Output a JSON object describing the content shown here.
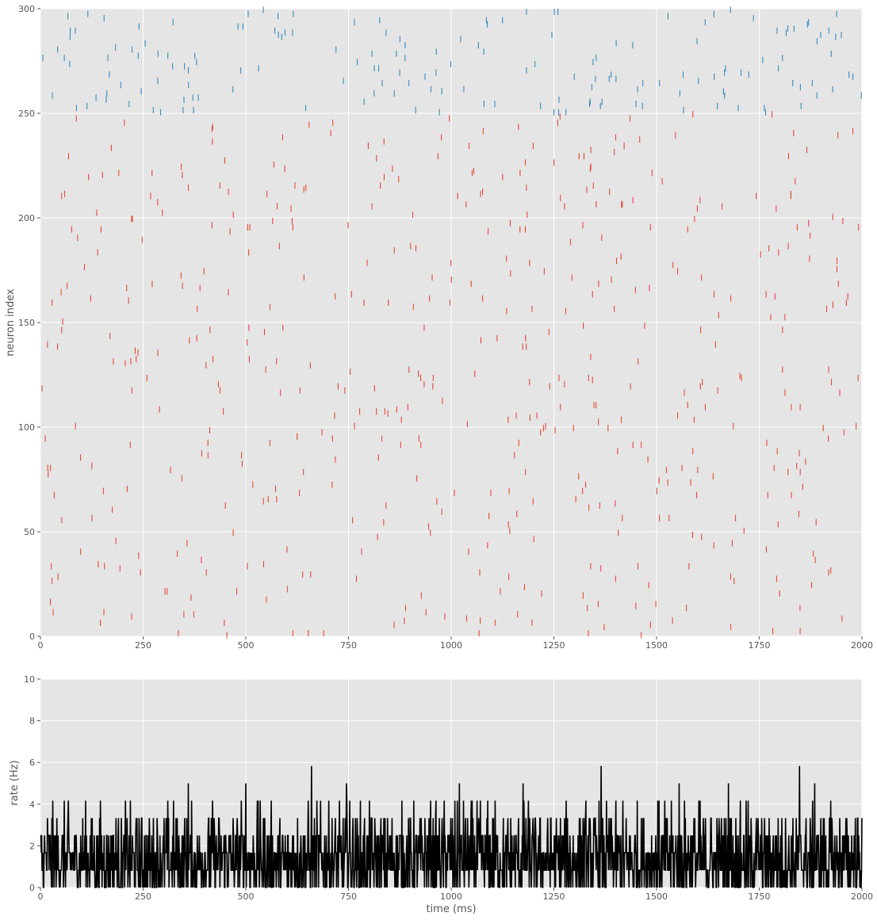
{
  "chart_data": [
    {
      "type": "raster",
      "title": "",
      "xlabel": "",
      "ylabel": "neuron index",
      "xlim": [
        0,
        2000
      ],
      "ylim": [
        0,
        300
      ],
      "xticks": [
        "0",
        "250",
        "500",
        "750",
        "1000",
        "1250",
        "1500",
        "1750",
        "2000"
      ],
      "yticks": [
        "0",
        "50",
        "100",
        "150",
        "200",
        "250",
        "300"
      ],
      "grid": true,
      "series": [
        {
          "name": "",
          "color": "#e24a33",
          "neuron_range": [
            0,
            250
          ],
          "spike_count": 520
        },
        {
          "name": "",
          "color": "#348abd",
          "neuron_range": [
            250,
            300
          ],
          "spike_count": 170
        }
      ]
    },
    {
      "type": "line",
      "title": "",
      "xlabel": "time (ms)",
      "ylabel": "rate (Hz)",
      "xlim": [
        0,
        2000
      ],
      "ylim": [
        0,
        10
      ],
      "xticks": [
        "0",
        "250",
        "500",
        "750",
        "1000",
        "1250",
        "1500",
        "1750",
        "2000"
      ],
      "yticks": [
        "0",
        "2",
        "4",
        "6",
        "8",
        "10"
      ],
      "grid": true,
      "series": [
        {
          "name": "",
          "color": "#000000",
          "levels": [
            0,
            0.83,
            1.67,
            2.5,
            3.33,
            4.17,
            5.0,
            5.83
          ],
          "peaks": [
            {
              "x": 660,
              "y": 5.83
            },
            {
              "x": 1365,
              "y": 5.83
            },
            {
              "x": 1848,
              "y": 5.83
            },
            {
              "x": 360,
              "y": 5.0
            },
            {
              "x": 500,
              "y": 5.0
            },
            {
              "x": 745,
              "y": 5.0
            },
            {
              "x": 1020,
              "y": 5.0
            },
            {
              "x": 1175,
              "y": 5.0
            },
            {
              "x": 1555,
              "y": 5.0
            },
            {
              "x": 1675,
              "y": 5.0
            },
            {
              "x": 1885,
              "y": 5.0
            }
          ]
        }
      ]
    }
  ]
}
